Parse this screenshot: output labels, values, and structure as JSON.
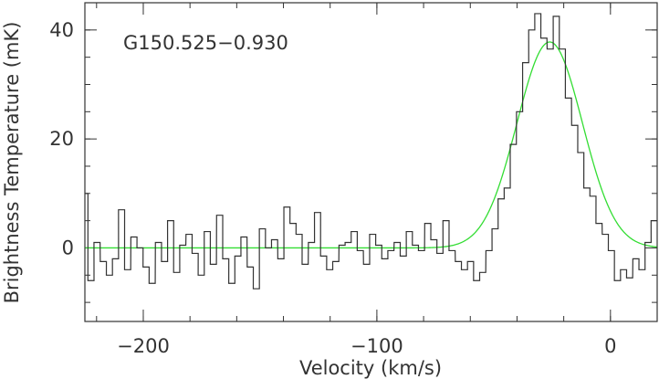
{
  "chart_data": {
    "type": "line",
    "annotation": "G150.525−0.930",
    "xlabel": "Velocity (km/s)",
    "ylabel": "Brightness Temperature (mK)",
    "xlim": [
      -225,
      20
    ],
    "ylim": [
      -13.5,
      45
    ],
    "xticks": [
      -200,
      -100,
      0
    ],
    "xtick_labels": [
      "−200",
      "−100",
      "0"
    ],
    "xminor_step": 20,
    "yticks": [
      0,
      20,
      40
    ],
    "ytick_labels": [
      "0",
      "20",
      "40"
    ],
    "yminor_step": 5,
    "grid": false,
    "colors": {
      "spectrum": "#333333",
      "fit": "#33dd33",
      "frame": "#333333"
    },
    "series": [
      {
        "style": "step",
        "x": [
          -225.0,
          -222.4,
          -219.8,
          -217.1,
          -214.5,
          -211.9,
          -209.3,
          -206.7,
          -204.0,
          -201.4,
          -198.8,
          -196.2,
          -193.5,
          -190.9,
          -188.3,
          -185.7,
          -183.1,
          -180.4,
          -177.8,
          -175.2,
          -172.6,
          -170.0,
          -167.3,
          -164.7,
          -162.1,
          -159.5,
          -156.9,
          -154.2,
          -151.6,
          -149.0,
          -146.4,
          -143.8,
          -141.1,
          -138.5,
          -135.9,
          -133.3,
          -130.7,
          -128.0,
          -125.4,
          -122.8,
          -120.2,
          -117.6,
          -114.9,
          -112.3,
          -109.7,
          -107.1,
          -104.4,
          -101.8,
          -99.2,
          -96.6,
          -94.0,
          -91.3,
          -88.7,
          -86.1,
          -83.5,
          -80.9,
          -78.2,
          -75.6,
          -73.0,
          -70.4,
          -67.8,
          -65.1,
          -62.5,
          -59.9,
          -57.3,
          -54.7,
          -52.0,
          -49.4,
          -46.8,
          -44.2,
          -41.6,
          -38.9,
          -36.3,
          -33.7,
          -31.1,
          -28.5,
          -25.8,
          -23.2,
          -20.6,
          -18.0,
          -15.3,
          -12.7,
          -10.1,
          -7.5,
          -4.9,
          -2.2,
          0.4,
          3.0,
          5.6,
          8.2,
          10.9,
          13.5,
          16.1,
          18.7
        ],
        "y": [
          10.0,
          -6.0,
          1.0,
          -2.5,
          -5.0,
          -2.0,
          7.0,
          -4.0,
          2.0,
          0.0,
          -3.5,
          -6.5,
          1.0,
          -2.5,
          5.0,
          -4.5,
          0.5,
          2.5,
          -1.0,
          -5.0,
          3.0,
          -3.0,
          6.0,
          -2.0,
          -6.5,
          -1.5,
          2.0,
          -3.5,
          -7.5,
          3.5,
          0.0,
          1.5,
          -2.0,
          7.5,
          4.5,
          2.5,
          -3.0,
          1.0,
          6.5,
          -1.5,
          -4.0,
          -2.5,
          0.5,
          1.0,
          3.0,
          -0.5,
          -3.0,
          2.5,
          0.5,
          -2.0,
          -0.5,
          1.0,
          -1.5,
          3.0,
          0.5,
          -0.5,
          4.5,
          1.5,
          -1.0,
          5.0,
          -0.5,
          -2.5,
          -4.0,
          -2.5,
          -6.0,
          -4.5,
          -0.5,
          3.5,
          9.0,
          11.0,
          19.0,
          25.0,
          34.0,
          40.0,
          43.0,
          38.5,
          36.5,
          42.5,
          36.5,
          27.5,
          22.5,
          17.5,
          11.0,
          9.5,
          4.5,
          2.5,
          -0.5,
          -6.0,
          -4.0,
          -5.5,
          -2.0,
          -4.0,
          1.0,
          5.0
        ]
      },
      {
        "style": "gaussian",
        "amplitude": 37.8,
        "center": -26,
        "fwhm": 33,
        "baseline": 0
      }
    ]
  }
}
